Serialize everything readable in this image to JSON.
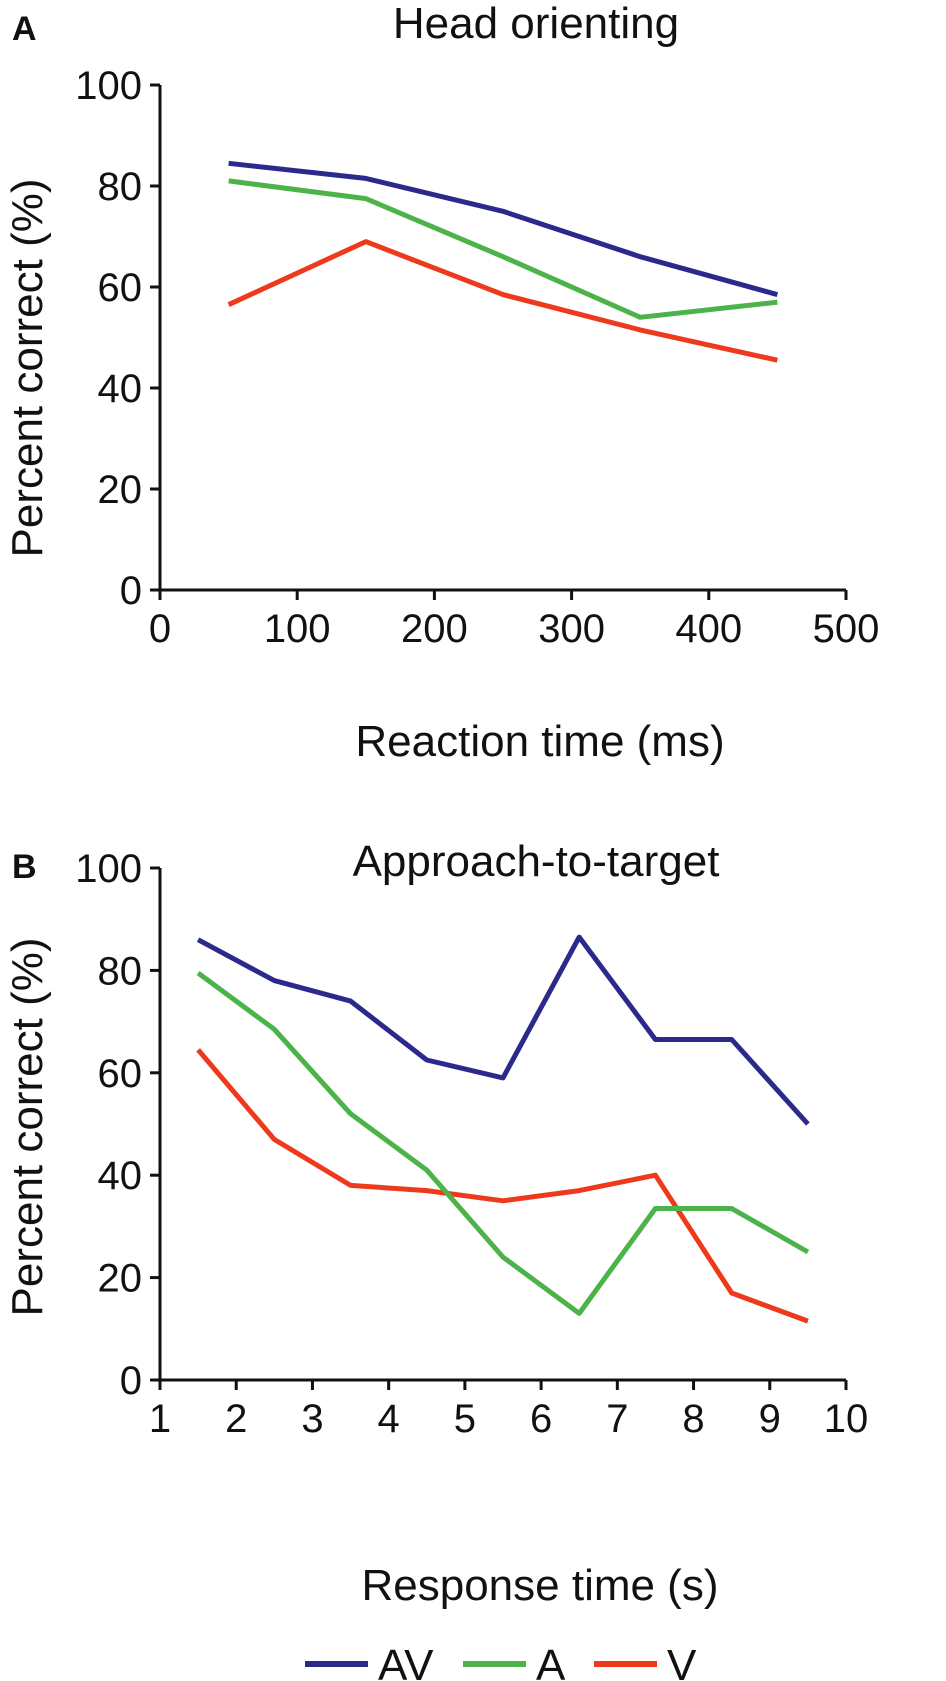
{
  "colors": {
    "AV": "#2b2a8c",
    "A": "#4cb34a",
    "V": "#ee3a1c"
  },
  "legend": {
    "items": [
      {
        "key": "AV",
        "label": "AV"
      },
      {
        "key": "A",
        "label": "A"
      },
      {
        "key": "V",
        "label": "V"
      }
    ]
  },
  "chart_data": [
    {
      "type": "line",
      "panel": "A",
      "title": "Head orienting",
      "xlabel": "Reaction time (ms)",
      "ylabel": "Percent correct (%)",
      "xlim": [
        0,
        500
      ],
      "ylim": [
        0,
        100
      ],
      "xticks": [
        0,
        100,
        200,
        300,
        400,
        500
      ],
      "yticks": [
        0,
        20,
        40,
        60,
        80,
        100
      ],
      "grid": false,
      "legend": "bottom",
      "x": [
        50,
        150,
        250,
        350,
        450
      ],
      "series": [
        {
          "name": "AV",
          "values": [
            84.5,
            81.5,
            75,
            66,
            58.5
          ]
        },
        {
          "name": "A",
          "values": [
            81,
            77.5,
            66,
            54,
            57
          ]
        },
        {
          "name": "V",
          "values": [
            56.5,
            69,
            58.5,
            51.5,
            45.5
          ]
        }
      ]
    },
    {
      "type": "line",
      "panel": "B",
      "title": "Approach-to-target",
      "xlabel": "Response time (s)",
      "ylabel": "Percent correct (%)",
      "xlim": [
        1,
        10
      ],
      "ylim": [
        0,
        100
      ],
      "xticks": [
        1,
        2,
        3,
        4,
        5,
        6,
        7,
        8,
        9,
        10
      ],
      "yticks": [
        0,
        20,
        40,
        60,
        80,
        100
      ],
      "grid": false,
      "legend": "bottom",
      "x": [
        1.5,
        2.5,
        3.5,
        4.5,
        5.5,
        6.5,
        7.5,
        8.5,
        9.5
      ],
      "series": [
        {
          "name": "AV",
          "values": [
            86,
            78,
            74,
            62.5,
            59,
            86.5,
            66.5,
            66.5,
            50
          ]
        },
        {
          "name": "A",
          "values": [
            79.5,
            68.5,
            52,
            41,
            24,
            13,
            33.5,
            33.5,
            25
          ]
        },
        {
          "name": "V",
          "values": [
            64.5,
            47,
            38,
            37,
            35,
            37,
            40,
            17,
            11.5
          ]
        }
      ]
    }
  ]
}
